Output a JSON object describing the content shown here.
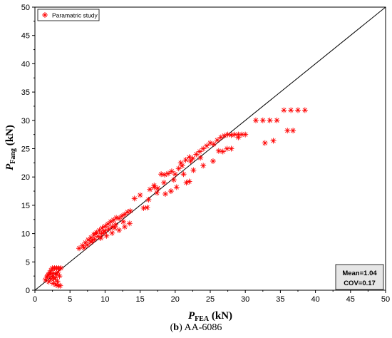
{
  "chart_data": {
    "type": "scatter",
    "xlim": [
      0,
      50
    ],
    "ylim": [
      0,
      50
    ],
    "xticks": [
      "0",
      "5",
      "10",
      "15",
      "20",
      "25",
      "30",
      "35",
      "40",
      "45",
      "50"
    ],
    "yticks": [
      "0",
      "5",
      "10",
      "15",
      "20",
      "25",
      "30",
      "35",
      "40",
      "45",
      "50"
    ],
    "xlabel": {
      "main": "P",
      "sub": "FEA",
      "unit": " (kN)"
    },
    "ylabel": {
      "main": "P",
      "sub": "Fang",
      "unit": " (kN)"
    },
    "reference_line": {
      "from": [
        0,
        0
      ],
      "to": [
        50,
        50
      ]
    },
    "legend": {
      "label": "Paramatric study",
      "position": "top-left"
    },
    "stats": {
      "mean": "Mean=1.04",
      "cov": "COV=0.17",
      "position": "bottom-right"
    },
    "marker_color": "#ff0000",
    "series": [
      {
        "name": "Paramatric study",
        "points": [
          [
            1.5,
            1.8
          ],
          [
            1.7,
            2.3
          ],
          [
            1.9,
            2.7
          ],
          [
            2.1,
            3.1
          ],
          [
            2.3,
            3.5
          ],
          [
            2.5,
            3.9
          ],
          [
            2.8,
            3.9
          ],
          [
            3.1,
            3.9
          ],
          [
            3.4,
            3.9
          ],
          [
            3.7,
            3.9
          ],
          [
            2.0,
            1.5
          ],
          [
            2.3,
            2.0
          ],
          [
            2.5,
            2.5
          ],
          [
            2.7,
            3.0
          ],
          [
            2.9,
            2.2
          ],
          [
            3.1,
            2.8
          ],
          [
            3.3,
            3.2
          ],
          [
            3.5,
            2.5
          ],
          [
            2.6,
            1.2
          ],
          [
            3.0,
            1.0
          ],
          [
            3.3,
            0.8
          ],
          [
            3.6,
            0.8
          ],
          [
            1.8,
            2.5
          ],
          [
            2.2,
            2.9
          ],
          [
            2.7,
            2.0
          ],
          [
            3.2,
            1.6
          ],
          [
            6.3,
            7.4
          ],
          [
            6.8,
            7.9
          ],
          [
            7.2,
            8.4
          ],
          [
            7.6,
            8.9
          ],
          [
            8.0,
            9.3
          ],
          [
            8.4,
            9.8
          ],
          [
            8.8,
            10.2
          ],
          [
            9.2,
            10.6
          ],
          [
            9.6,
            11.0
          ],
          [
            10.0,
            11.3
          ],
          [
            10.4,
            11.7
          ],
          [
            10.8,
            12.1
          ],
          [
            11.2,
            12.4
          ],
          [
            11.6,
            12.8
          ],
          [
            12.0,
            12.7
          ],
          [
            12.4,
            13.1
          ],
          [
            12.8,
            13.4
          ],
          [
            13.2,
            13.8
          ],
          [
            13.6,
            14.0
          ],
          [
            7.0,
            7.5
          ],
          [
            7.5,
            8.0
          ],
          [
            8.0,
            8.5
          ],
          [
            8.5,
            9.0
          ],
          [
            9.0,
            9.5
          ],
          [
            9.5,
            10.0
          ],
          [
            10.0,
            10.5
          ],
          [
            10.5,
            10.8
          ],
          [
            11.0,
            11.2
          ],
          [
            11.5,
            11.6
          ],
          [
            8.2,
            8.8
          ],
          [
            9.4,
            9.2
          ],
          [
            10.2,
            9.6
          ],
          [
            11.0,
            10.1
          ],
          [
            12.0,
            10.6
          ],
          [
            12.8,
            11.2
          ],
          [
            13.5,
            11.8
          ],
          [
            8.6,
            10.0
          ],
          [
            9.8,
            10.3
          ],
          [
            11.4,
            11.0
          ],
          [
            12.6,
            12.1
          ],
          [
            14.2,
            16.2
          ],
          [
            15.0,
            16.8
          ],
          [
            15.5,
            14.5
          ],
          [
            16.0,
            14.6
          ],
          [
            16.4,
            17.8
          ],
          [
            17.0,
            18.5
          ],
          [
            17.5,
            18.0
          ],
          [
            18.0,
            20.5
          ],
          [
            18.5,
            20.4
          ],
          [
            19.0,
            20.6
          ],
          [
            19.5,
            21.0
          ],
          [
            20.0,
            20.5
          ],
          [
            20.5,
            21.5
          ],
          [
            21.0,
            22.0
          ],
          [
            21.5,
            23.0
          ],
          [
            22.0,
            23.5
          ],
          [
            22.5,
            23.3
          ],
          [
            23.0,
            24.0
          ],
          [
            23.5,
            24.5
          ],
          [
            24.0,
            25.0
          ],
          [
            24.5,
            25.5
          ],
          [
            25.0,
            26.0
          ],
          [
            25.5,
            25.8
          ],
          [
            26.0,
            26.5
          ],
          [
            26.5,
            27.0
          ],
          [
            27.0,
            27.3
          ],
          [
            27.5,
            27.5
          ],
          [
            28.0,
            27.4
          ],
          [
            28.5,
            27.5
          ],
          [
            29.0,
            27.5
          ],
          [
            29.5,
            27.5
          ],
          [
            30.0,
            27.5
          ],
          [
            17.0,
            18.2
          ],
          [
            18.4,
            19.0
          ],
          [
            19.8,
            19.5
          ],
          [
            21.2,
            20.5
          ],
          [
            22.6,
            21.2
          ],
          [
            24.0,
            22.0
          ],
          [
            25.4,
            22.8
          ],
          [
            26.8,
            24.5
          ],
          [
            28.0,
            25.0
          ],
          [
            18.6,
            17.0
          ],
          [
            19.4,
            17.5
          ],
          [
            20.2,
            18.2
          ],
          [
            21.6,
            19.0
          ],
          [
            22.0,
            19.2
          ],
          [
            16.2,
            16.0
          ],
          [
            17.4,
            17.2
          ],
          [
            20.8,
            22.5
          ],
          [
            22.2,
            22.8
          ],
          [
            23.6,
            23.4
          ],
          [
            31.5,
            30.0
          ],
          [
            32.5,
            30.0
          ],
          [
            33.5,
            30.0
          ],
          [
            34.5,
            30.0
          ],
          [
            35.5,
            31.8
          ],
          [
            36.5,
            31.8
          ],
          [
            37.5,
            31.8
          ],
          [
            38.5,
            31.8
          ],
          [
            36.0,
            28.2
          ],
          [
            36.8,
            28.2
          ],
          [
            34.0,
            26.4
          ],
          [
            32.8,
            26.0
          ],
          [
            29.0,
            27.0
          ],
          [
            27.4,
            25.0
          ],
          [
            26.2,
            24.6
          ]
        ]
      }
    ]
  },
  "caption": {
    "letter": "b",
    "text": " AA-6086"
  }
}
